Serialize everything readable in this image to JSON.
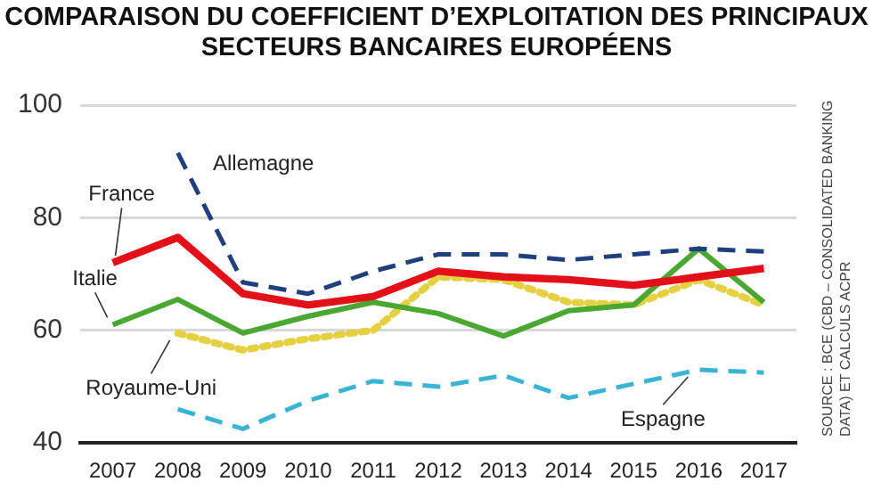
{
  "chart_data": {
    "type": "line",
    "title": "COMPARAISON DU COEFFICIENT D’EXPLOITATION DES PRINCIPAUX SECTEURS BANCAIRES EUROPÉENS",
    "categories": [
      "2007",
      "2008",
      "2009",
      "2010",
      "2011",
      "2012",
      "2013",
      "2014",
      "2015",
      "2016",
      "2017"
    ],
    "series": [
      {
        "name": "Allemagne",
        "color": "#1f3f7f",
        "line_style": "dashed",
        "values": [
          null,
          91.5,
          68.5,
          66.5,
          70.5,
          73.5,
          73.5,
          72.5,
          73.5,
          74.5,
          74
        ]
      },
      {
        "name": "France",
        "color": "#e3101a",
        "line_style": "solid",
        "values": [
          72,
          76.5,
          66.5,
          64.5,
          66,
          70.5,
          69.5,
          69,
          68,
          69.5,
          71
        ]
      },
      {
        "name": "Italie",
        "color": "#4aa832",
        "line_style": "solid",
        "values": [
          61,
          65.5,
          59.5,
          62.5,
          65,
          63,
          59,
          63.5,
          64.5,
          74.5,
          65
        ]
      },
      {
        "name": "Royaume-Uni",
        "color": "#e4d040",
        "line_style": "dotted",
        "values": [
          null,
          59.5,
          56.5,
          58.5,
          60,
          69.5,
          69,
          65,
          64.5,
          69,
          64.5
        ]
      },
      {
        "name": "Espagne",
        "color": "#3ab4d4",
        "line_style": "dashed",
        "values": [
          null,
          46,
          42.5,
          47.5,
          51,
          50,
          52,
          48,
          50.5,
          53,
          52.5
        ]
      }
    ],
    "ylim": [
      40,
      100
    ],
    "yticks": [
      40,
      60,
      80,
      100
    ],
    "grid": "y",
    "legend": false,
    "marker": "none",
    "annotations": [
      "SOURCE : BCE (CBD – CONSOLIDATED BANKING DATA) ET CALCULS ACPR"
    ]
  }
}
